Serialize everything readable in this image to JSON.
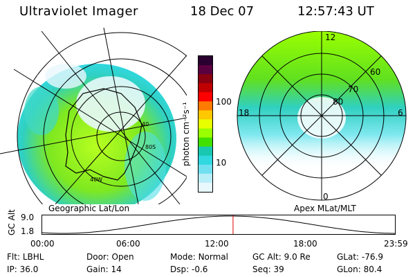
{
  "header": {
    "instrument": "Ultraviolet Imager",
    "date": "18 Dec 07",
    "time": "12:57:43 UT"
  },
  "left_panel": {
    "label": "Geographic Lat/Lon",
    "annotations": [
      "40",
      "80S",
      "40W"
    ]
  },
  "right_panel": {
    "label": "Apex MLat/MLT",
    "mlt_labels": [
      "12",
      "18",
      "6",
      "0"
    ],
    "mlat_labels": [
      "60",
      "70",
      "80"
    ]
  },
  "colorbar": {
    "unit": "photon cm⁻²s⁻¹",
    "ticks": [
      "100",
      "10"
    ],
    "colors": [
      "#2a0030",
      "#5a0040",
      "#8a0010",
      "#c00000",
      "#ff0000",
      "#ff7a00",
      "#ffc800",
      "#e8ff00",
      "#9aff00",
      "#40e000",
      "#18c8b0",
      "#30d8e0",
      "#70e0f0",
      "#b8eef8",
      "#e8f8fc"
    ]
  },
  "altitude_track": {
    "axis_label": "GC Alt",
    "y_ticks": [
      "9.0",
      "1.8"
    ],
    "x_ticks": [
      "00:00",
      "06:00",
      "12:00",
      "18:00",
      "23:59"
    ],
    "current_time_fraction": 0.54
  },
  "footer": {
    "row1": [
      {
        "label": "Flt:",
        "value": "LBHL"
      },
      {
        "label": "Door:",
        "value": "Open"
      },
      {
        "label": "Mode:",
        "value": "Normal"
      },
      {
        "label": "GC Alt:",
        "value": "9.0 Re"
      },
      {
        "label": "GLat:",
        "value": "-76.9"
      }
    ],
    "row2": [
      {
        "label": "IP:",
        "value": "36.0"
      },
      {
        "label": "Gain:",
        "value": "14"
      },
      {
        "label": "Dsp:",
        "value": "-0.6"
      },
      {
        "label": "Seq:",
        "value": "39"
      },
      {
        "label": "GLon:",
        "value": "80.4"
      }
    ]
  }
}
